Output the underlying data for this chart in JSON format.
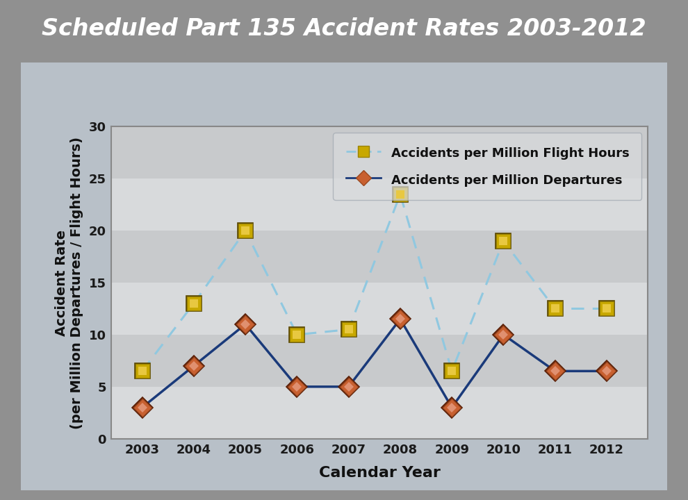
{
  "title": "Scheduled Part 135 Accident Rates 2003-2012",
  "years": [
    2003,
    2004,
    2005,
    2006,
    2007,
    2008,
    2009,
    2010,
    2011,
    2012
  ],
  "flight_hours": [
    6.5,
    13.0,
    20.0,
    10.0,
    10.5,
    23.5,
    6.5,
    19.0,
    12.5,
    12.5
  ],
  "departures": [
    3.0,
    7.0,
    11.0,
    5.0,
    5.0,
    11.5,
    3.0,
    10.0,
    6.5,
    6.5
  ],
  "ylim": [
    0,
    30
  ],
  "yticks": [
    0,
    5,
    10,
    15,
    20,
    25,
    30
  ],
  "xlabel": "Calendar Year",
  "ylabel": "Accident Rate\n(per Million Departures / Flight Hours)",
  "legend_flight_hours": "Accidents per Million Flight Hours",
  "legend_departures": "Accidents per Million Departures",
  "line_color_flight_hours": "#90C8E0",
  "line_color_departures": "#1A3A7A",
  "marker_color_flight_hours_face": "#C8A800",
  "marker_color_departures_face": "#C86030",
  "title_bg_color": "#707070",
  "outer_bg_color": "#909090",
  "inner_bg_color": "#B8C0C8",
  "band_colors_dark": "#C0C4CC",
  "band_colors_light": "#D4D8DC",
  "title_fontsize": 24,
  "axis_label_fontsize": 14,
  "tick_fontsize": 13,
  "legend_fontsize": 13
}
